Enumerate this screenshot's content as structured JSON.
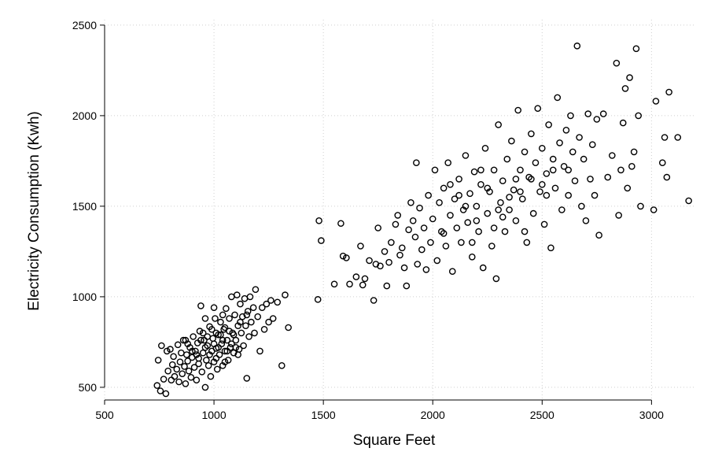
{
  "chart_data": {
    "type": "scatter",
    "title": "",
    "xlabel": "Square Feet",
    "ylabel": "Electricity Consumption (Kwh)",
    "xlim": [
      500,
      3200
    ],
    "ylim": [
      430,
      2530
    ],
    "x_ticks": [
      500,
      1000,
      1500,
      2000,
      2500,
      3000
    ],
    "y_ticks": [
      500,
      1000,
      1500,
      2000,
      2500
    ],
    "grid": true,
    "marker": "hollow-circle",
    "marker_color": "#000000",
    "clusters": [
      {
        "description": "dense small-home cluster",
        "x_range": [
          730,
          1360
        ],
        "y_range": [
          460,
          1040
        ],
        "points": [
          [
            740,
            510
          ],
          [
            745,
            650
          ],
          [
            755,
            480
          ],
          [
            760,
            730
          ],
          [
            770,
            545
          ],
          [
            780,
            465
          ],
          [
            785,
            700
          ],
          [
            790,
            590
          ],
          [
            800,
            710
          ],
          [
            805,
            540
          ],
          [
            810,
            625
          ],
          [
            815,
            670
          ],
          [
            820,
            560
          ],
          [
            830,
            600
          ],
          [
            835,
            735
          ],
          [
            840,
            530
          ],
          [
            845,
            640
          ],
          [
            850,
            690
          ],
          [
            855,
            575
          ],
          [
            860,
            760
          ],
          [
            865,
            615
          ],
          [
            870,
            520
          ],
          [
            875,
            680
          ],
          [
            880,
            645
          ],
          [
            885,
            590
          ],
          [
            890,
            720
          ],
          [
            895,
            555
          ],
          [
            900,
            665
          ],
          [
            905,
            780
          ],
          [
            910,
            610
          ],
          [
            915,
            700
          ],
          [
            920,
            540
          ],
          [
            925,
            745
          ],
          [
            930,
            630
          ],
          [
            935,
            810
          ],
          [
            940,
            950
          ],
          [
            945,
            585
          ],
          [
            950,
            690
          ],
          [
            955,
            760
          ],
          [
            960,
            500
          ],
          [
            965,
            650
          ],
          [
            970,
            730
          ],
          [
            975,
            620
          ],
          [
            980,
            835
          ],
          [
            985,
            560
          ],
          [
            990,
            700
          ],
          [
            995,
            770
          ],
          [
            1000,
            640
          ],
          [
            1005,
            880
          ],
          [
            1010,
            715
          ],
          [
            1015,
            600
          ],
          [
            1020,
            790
          ],
          [
            1025,
            680
          ],
          [
            1030,
            860
          ],
          [
            1035,
            740
          ],
          [
            1040,
            620
          ],
          [
            1045,
            820
          ],
          [
            1050,
            700
          ],
          [
            1055,
            935
          ],
          [
            1060,
            760
          ],
          [
            1065,
            650
          ],
          [
            1070,
            880
          ],
          [
            1075,
            720
          ],
          [
            1080,
            1000
          ],
          [
            1085,
            800
          ],
          [
            1090,
            690
          ],
          [
            1095,
            900
          ],
          [
            1100,
            760
          ],
          [
            1105,
            1010
          ],
          [
            1110,
            840
          ],
          [
            1115,
            710
          ],
          [
            1120,
            960
          ],
          [
            1125,
            800
          ],
          [
            1130,
            890
          ],
          [
            1135,
            730
          ],
          [
            1140,
            990
          ],
          [
            1145,
            840
          ],
          [
            1150,
            550
          ],
          [
            1155,
            920
          ],
          [
            1160,
            780
          ],
          [
            1165,
            1000
          ],
          [
            1170,
            860
          ],
          [
            1180,
            940
          ],
          [
            1185,
            800
          ],
          [
            1190,
            1040
          ],
          [
            1200,
            890
          ],
          [
            1210,
            700
          ],
          [
            1220,
            940
          ],
          [
            1230,
            820
          ],
          [
            1240,
            960
          ],
          [
            1250,
            860
          ],
          [
            1260,
            980
          ],
          [
            1270,
            880
          ],
          [
            1290,
            970
          ],
          [
            1310,
            620
          ],
          [
            1325,
            1010
          ],
          [
            1340,
            830
          ],
          [
            880,
            740
          ],
          [
            900,
            700
          ],
          [
            920,
            680
          ],
          [
            940,
            760
          ],
          [
            960,
            720
          ],
          [
            980,
            680
          ],
          [
            1000,
            740
          ],
          [
            1020,
            720
          ],
          [
            1040,
            760
          ],
          [
            1060,
            700
          ],
          [
            1080,
            740
          ],
          [
            1100,
            720
          ],
          [
            950,
            800
          ],
          [
            970,
            780
          ],
          [
            990,
            820
          ],
          [
            1010,
            800
          ],
          [
            1030,
            790
          ],
          [
            1050,
            830
          ],
          [
            1070,
            810
          ],
          [
            1090,
            790
          ],
          [
            930,
            660
          ],
          [
            1010,
            660
          ],
          [
            1050,
            640
          ],
          [
            1110,
            680
          ],
          [
            870,
            760
          ],
          [
            960,
            880
          ],
          [
            1000,
            940
          ],
          [
            1040,
            900
          ],
          [
            1120,
            860
          ],
          [
            1150,
            900
          ]
        ]
      },
      {
        "description": "broad large-home cluster",
        "x_range": [
          1470,
          3170
        ],
        "y_range": [
          980,
          2390
        ],
        "points": [
          [
            1475,
            985
          ],
          [
            1480,
            1420
          ],
          [
            1490,
            1310
          ],
          [
            1550,
            1070
          ],
          [
            1580,
            1405
          ],
          [
            1590,
            1225
          ],
          [
            1605,
            1215
          ],
          [
            1620,
            1070
          ],
          [
            1650,
            1110
          ],
          [
            1670,
            1280
          ],
          [
            1680,
            1065
          ],
          [
            1690,
            1100
          ],
          [
            1710,
            1200
          ],
          [
            1730,
            980
          ],
          [
            1740,
            1180
          ],
          [
            1750,
            1380
          ],
          [
            1760,
            1170
          ],
          [
            1780,
            1250
          ],
          [
            1790,
            1060
          ],
          [
            1800,
            1190
          ],
          [
            1810,
            1300
          ],
          [
            1830,
            1400
          ],
          [
            1840,
            1450
          ],
          [
            1850,
            1230
          ],
          [
            1860,
            1270
          ],
          [
            1870,
            1160
          ],
          [
            1880,
            1060
          ],
          [
            1890,
            1370
          ],
          [
            1900,
            1520
          ],
          [
            1910,
            1420
          ],
          [
            1920,
            1330
          ],
          [
            1925,
            1740
          ],
          [
            1930,
            1180
          ],
          [
            1940,
            1490
          ],
          [
            1950,
            1260
          ],
          [
            1960,
            1380
          ],
          [
            1970,
            1150
          ],
          [
            1980,
            1560
          ],
          [
            1990,
            1300
          ],
          [
            2000,
            1430
          ],
          [
            2010,
            1700
          ],
          [
            2020,
            1200
          ],
          [
            2030,
            1520
          ],
          [
            2040,
            1360
          ],
          [
            2050,
            1600
          ],
          [
            2060,
            1280
          ],
          [
            2070,
            1740
          ],
          [
            2080,
            1450
          ],
          [
            2090,
            1140
          ],
          [
            2100,
            1540
          ],
          [
            2110,
            1380
          ],
          [
            2120,
            1650
          ],
          [
            2130,
            1300
          ],
          [
            2140,
            1480
          ],
          [
            2150,
            1780
          ],
          [
            2160,
            1410
          ],
          [
            2170,
            1570
          ],
          [
            2180,
            1220
          ],
          [
            2190,
            1690
          ],
          [
            2200,
            1500
          ],
          [
            2210,
            1360
          ],
          [
            2220,
            1620
          ],
          [
            2230,
            1160
          ],
          [
            2240,
            1820
          ],
          [
            2250,
            1460
          ],
          [
            2260,
            1580
          ],
          [
            2270,
            1280
          ],
          [
            2280,
            1700
          ],
          [
            2290,
            1100
          ],
          [
            2300,
            1950
          ],
          [
            2310,
            1520
          ],
          [
            2320,
            1640
          ],
          [
            2330,
            1360
          ],
          [
            2340,
            1760
          ],
          [
            2350,
            1480
          ],
          [
            2360,
            1860
          ],
          [
            2370,
            1590
          ],
          [
            2380,
            1420
          ],
          [
            2390,
            2030
          ],
          [
            2400,
            1700
          ],
          [
            2410,
            1540
          ],
          [
            2420,
            1800
          ],
          [
            2430,
            1300
          ],
          [
            2440,
            1660
          ],
          [
            2450,
            1900
          ],
          [
            2460,
            1460
          ],
          [
            2470,
            1740
          ],
          [
            2480,
            2040
          ],
          [
            2490,
            1580
          ],
          [
            2500,
            1820
          ],
          [
            2510,
            1400
          ],
          [
            2520,
            1680
          ],
          [
            2530,
            1950
          ],
          [
            2540,
            1270
          ],
          [
            2550,
            1760
          ],
          [
            2560,
            1600
          ],
          [
            2570,
            2100
          ],
          [
            2580,
            1850
          ],
          [
            2590,
            1480
          ],
          [
            2600,
            1720
          ],
          [
            2610,
            1920
          ],
          [
            2620,
            1560
          ],
          [
            2630,
            2000
          ],
          [
            2640,
            1800
          ],
          [
            2650,
            1640
          ],
          [
            2660,
            2385
          ],
          [
            2670,
            1880
          ],
          [
            2680,
            1500
          ],
          [
            2690,
            1760
          ],
          [
            2700,
            1420
          ],
          [
            2710,
            2010
          ],
          [
            2720,
            1650
          ],
          [
            2730,
            1840
          ],
          [
            2740,
            1560
          ],
          [
            2750,
            1980
          ],
          [
            2760,
            1340
          ],
          [
            2780,
            2010
          ],
          [
            2800,
            1660
          ],
          [
            2820,
            1780
          ],
          [
            2840,
            2290
          ],
          [
            2850,
            1450
          ],
          [
            2860,
            1700
          ],
          [
            2870,
            1960
          ],
          [
            2880,
            2150
          ],
          [
            2890,
            1600
          ],
          [
            2900,
            2210
          ],
          [
            2910,
            1720
          ],
          [
            2920,
            1800
          ],
          [
            2930,
            2370
          ],
          [
            2940,
            2000
          ],
          [
            2950,
            1500
          ],
          [
            3010,
            1480
          ],
          [
            3020,
            2080
          ],
          [
            3050,
            1740
          ],
          [
            3060,
            1880
          ],
          [
            3070,
            1660
          ],
          [
            3080,
            2130
          ],
          [
            3120,
            1880
          ],
          [
            3170,
            1530
          ],
          [
            2050,
            1350
          ],
          [
            2150,
            1500
          ],
          [
            2250,
            1600
          ],
          [
            2350,
            1550
          ],
          [
            2450,
            1650
          ],
          [
            2550,
            1700
          ],
          [
            2200,
            1420
          ],
          [
            2300,
            1480
          ],
          [
            2400,
            1580
          ],
          [
            2500,
            1620
          ],
          [
            2120,
            1560
          ],
          [
            2220,
            1700
          ],
          [
            2320,
            1440
          ],
          [
            2420,
            1360
          ],
          [
            2520,
            1560
          ],
          [
            2620,
            1700
          ],
          [
            2080,
            1620
          ],
          [
            2180,
            1300
          ],
          [
            2280,
            1380
          ],
          [
            2380,
            1650
          ]
        ]
      }
    ]
  }
}
